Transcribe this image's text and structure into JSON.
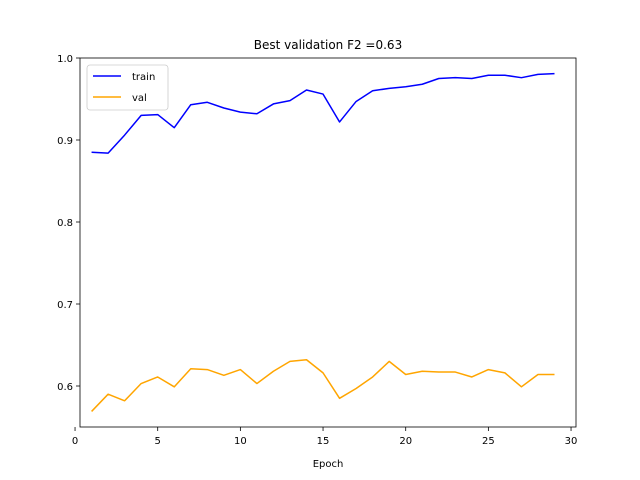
{
  "chart_data": {
    "type": "line",
    "title": "Best validation F2 =0.63",
    "xlabel": "Epoch",
    "ylabel": "",
    "xlim": [
      0.3,
      30.3
    ],
    "ylim": [
      0.55,
      1.0
    ],
    "xticks": [
      0,
      5,
      10,
      15,
      20,
      25,
      30
    ],
    "yticks": [
      0.6,
      0.7,
      0.8,
      0.9,
      1.0
    ],
    "xtick_labels": [
      "0",
      "5",
      "10",
      "15",
      "20",
      "25",
      "30"
    ],
    "ytick_labels": [
      "0.6",
      "0.7",
      "0.8",
      "0.9",
      "1.0"
    ],
    "grid": false,
    "legend_position": "top-left",
    "x": [
      1,
      2,
      3,
      4,
      5,
      6,
      7,
      8,
      9,
      10,
      11,
      12,
      13,
      14,
      15,
      16,
      17,
      18,
      19,
      20,
      21,
      22,
      23,
      24,
      25,
      26,
      27,
      28,
      29
    ],
    "series": [
      {
        "name": "train",
        "color": "#0000ff",
        "values": [
          0.885,
          0.884,
          0.906,
          0.93,
          0.931,
          0.915,
          0.943,
          0.946,
          0.939,
          0.934,
          0.932,
          0.944,
          0.948,
          0.961,
          0.956,
          0.922,
          0.947,
          0.96,
          0.963,
          0.965,
          0.968,
          0.975,
          0.976,
          0.975,
          0.979,
          0.979,
          0.976,
          0.98,
          0.981
        ]
      },
      {
        "name": "val",
        "color": "#ffa500",
        "values": [
          0.569,
          0.59,
          0.582,
          0.603,
          0.611,
          0.599,
          0.621,
          0.62,
          0.613,
          0.62,
          0.603,
          0.618,
          0.63,
          0.632,
          0.616,
          0.585,
          0.597,
          0.611,
          0.63,
          0.614,
          0.618,
          0.617,
          0.617,
          0.611,
          0.62,
          0.616,
          0.599,
          0.614,
          0.614
        ]
      }
    ]
  }
}
